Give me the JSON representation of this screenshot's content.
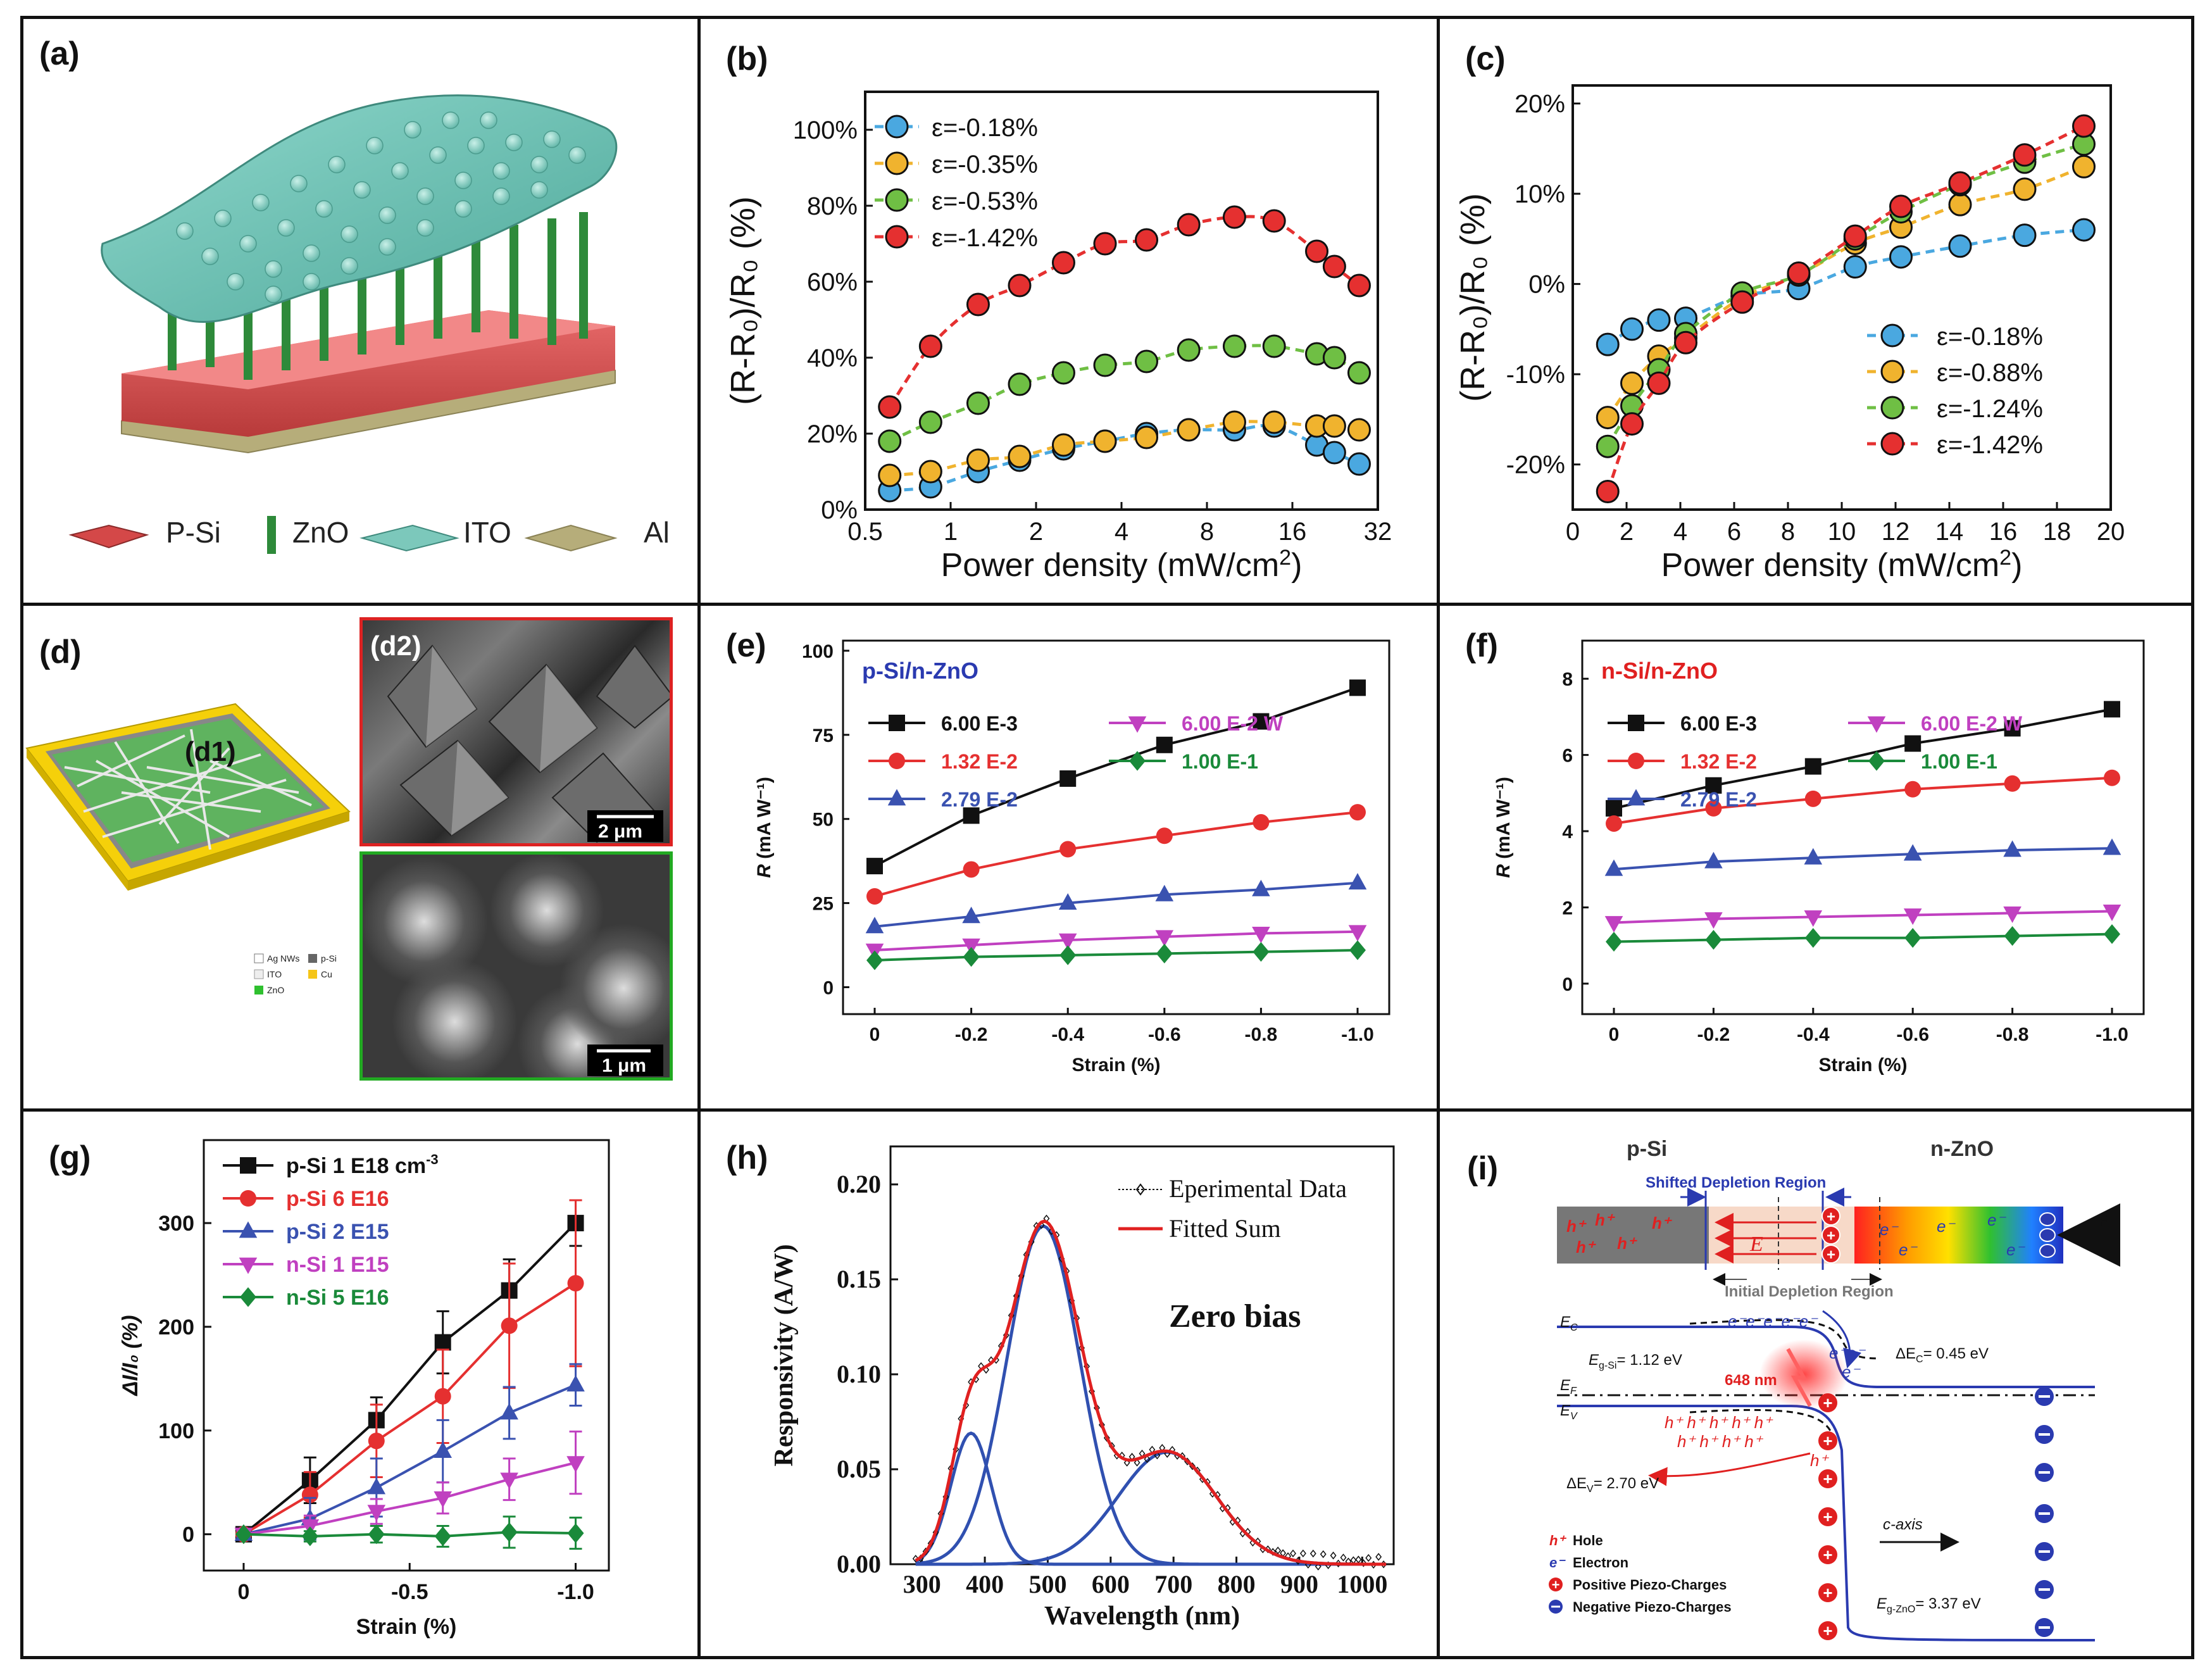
{
  "colors": {
    "blue": "#4aa8e0",
    "orange": "#f0b32e",
    "green": "#6fbf44",
    "red": "#e53030",
    "black": "#111111",
    "pink": "#c040c0",
    "dgreen": "#1a8a3a",
    "navy": "#3a52b0"
  },
  "panel_a": {
    "label": "(a)",
    "legend": [
      "P-Si",
      "ZnO",
      "ITO",
      "Al"
    ]
  },
  "panel_d": {
    "label": "(d)",
    "sub1": "(d1)",
    "sub2": "(d2)",
    "scale1": "2 μm",
    "scale2": "1 μm",
    "legend": [
      "Ag NWs",
      "p-Si",
      "ITO",
      "Cu",
      "ZnO"
    ]
  },
  "panel_i": {
    "label": "(i)",
    "psi": "p-Si",
    "nzno": "n-ZnO",
    "shifted": "Shifted Depletion Region",
    "initial": "Initial Depletion Region",
    "ec": "E",
    "ec_sub": "C",
    "ev": "E",
    "ev_sub": "V",
    "ef": "E",
    "ef_sub": "F",
    "eg_si": "E",
    "eg_si_sub": "g-Si",
    "eg_si_val": "= 1.12 eV",
    "dec": "ΔE",
    "dec_sub": "C",
    "dec_val": "= 0.45 eV",
    "dev": "ΔE",
    "dev_sub": "V",
    "dev_val": "= 2.70 eV",
    "eg_zno": "E",
    "eg_zno_sub": "g-ZnO",
    "eg_zno_val": "= 3.37 eV",
    "wavelength": "648 nm",
    "caxis": "c-axis",
    "force": "F",
    "efield": "E",
    "leg_hole": "Hole",
    "leg_electron": "Electron",
    "leg_pos": "Positive Piezo-Charges",
    "leg_neg": "Negative Piezo-Charges"
  },
  "chart_data": [
    {
      "id": "b",
      "type": "line",
      "label": "(b)",
      "title": "",
      "xlabel": "Power density (mW/cm",
      "xlabel_sup": "2",
      "xlabel_end": ")",
      "ylabel": "(R-R₀)/R₀ (%)",
      "xscale": "log2",
      "xlim": [
        0.5,
        32
      ],
      "xticks": [
        "0.5",
        "1",
        "2",
        "4",
        "8",
        "16",
        "32"
      ],
      "ylim": [
        0,
        110
      ],
      "yticks": [
        "0%",
        "20%",
        "40%",
        "60%",
        "80%",
        "100%"
      ],
      "x": [
        0.61,
        0.85,
        1.25,
        1.75,
        2.5,
        3.5,
        4.9,
        6.9,
        10.0,
        13.8,
        19.5,
        22.5,
        27.5
      ],
      "series": [
        {
          "name": "ε=-0.18%",
          "color": "blue",
          "values": [
            5,
            6,
            10,
            13,
            16,
            18,
            20,
            21,
            21,
            22,
            17,
            15,
            12
          ]
        },
        {
          "name": "ε=-0.35%",
          "color": "orange",
          "values": [
            9,
            10,
            13,
            14,
            17,
            18,
            19,
            21,
            23,
            23,
            22,
            22,
            21
          ]
        },
        {
          "name": "ε=-0.53%",
          "color": "green",
          "values": [
            18,
            23,
            28,
            33,
            36,
            38,
            39,
            42,
            43,
            43,
            41,
            40,
            36
          ]
        },
        {
          "name": "ε=-1.42%",
          "color": "red",
          "values": [
            27,
            43,
            54,
            59,
            65,
            70,
            71,
            75,
            77,
            76,
            68,
            64,
            59
          ]
        }
      ],
      "legend": "top-left"
    },
    {
      "id": "c",
      "type": "line",
      "label": "(c)",
      "xlabel": "Power density (mW/cm",
      "xlabel_sup": "2",
      "xlabel_end": ")",
      "ylabel": "(R-R₀)/R₀ (%)",
      "xlim": [
        0,
        20
      ],
      "xticks": [
        "0",
        "2",
        "4",
        "6",
        "8",
        "10",
        "12",
        "14",
        "16",
        "18",
        "20"
      ],
      "ylim": [
        -25,
        22
      ],
      "yticks": [
        "-20%",
        "-10%",
        "0%",
        "10%",
        "20%"
      ],
      "ytick_values": [
        -20,
        -10,
        0,
        10,
        20
      ],
      "x": [
        1.3,
        2.2,
        3.2,
        4.2,
        6.3,
        8.4,
        10.5,
        12.2,
        14.4,
        16.8,
        19
      ],
      "series": [
        {
          "name": "ε=-0.18%",
          "color": "blue",
          "values": [
            -6.7,
            -5,
            -4,
            -3.8,
            -1.3,
            -0.5,
            1.9,
            3,
            4.2,
            5.4,
            6
          ]
        },
        {
          "name": "ε=-0.88%",
          "color": "orange",
          "values": [
            -14.8,
            -11,
            -8,
            -6,
            -1.5,
            1,
            4.5,
            6.3,
            8.8,
            10.5,
            13
          ]
        },
        {
          "name": "ε=-1.24%",
          "color": "green",
          "values": [
            -18,
            -13.5,
            -9.5,
            -5.5,
            -1,
            1,
            5,
            8,
            11,
            13.5,
            15.5
          ]
        },
        {
          "name": "ε=-1.42%",
          "color": "red",
          "values": [
            -23,
            -15.5,
            -11,
            -6.5,
            -2,
            1.2,
            5.3,
            8.6,
            11.2,
            14.3,
            17.5
          ]
        }
      ],
      "legend": "bottom-right"
    },
    {
      "id": "e",
      "type": "line",
      "label": "(e)",
      "title": "p-Si/n-ZnO",
      "xlabel": "Strain (%)",
      "ylabel": "R",
      "ylabel_unit": "(mA W⁻¹)",
      "categories": [
        "0",
        "-0.2",
        "-0.4",
        "-0.6",
        "-0.8",
        "-1.0"
      ],
      "ylim": [
        -8,
        103
      ],
      "yticks": [
        "0",
        "25",
        "50",
        "75",
        "100"
      ],
      "ytick_values": [
        0,
        25,
        50,
        75,
        100
      ],
      "series": [
        {
          "name": "6.00 E-3",
          "color": "black",
          "marker": "square",
          "values": [
            36,
            51,
            62,
            72,
            79,
            89
          ]
        },
        {
          "name": "1.32 E-2",
          "color": "red",
          "marker": "circle",
          "values": [
            27,
            35,
            41,
            45,
            49,
            52
          ]
        },
        {
          "name": "2.79 E-2",
          "color": "navy",
          "marker": "triangle",
          "values": [
            18,
            21,
            25,
            27.5,
            29,
            31
          ]
        },
        {
          "name": "6.00 E-2 W",
          "color": "pink",
          "marker": "triangle-down",
          "values": [
            11,
            12.5,
            14,
            15,
            16,
            16.5
          ]
        },
        {
          "name": "1.00 E-1",
          "color": "dgreen",
          "marker": "diamond",
          "values": [
            8,
            9,
            9.5,
            10,
            10.5,
            11
          ]
        }
      ]
    },
    {
      "id": "f",
      "type": "line",
      "label": "(f)",
      "title": "n-Si/n-ZnO",
      "xlabel": "Strain (%)",
      "ylabel": "R",
      "ylabel_unit": "(mA W⁻¹)",
      "categories": [
        "0",
        "-0.2",
        "-0.4",
        "-0.6",
        "-0.8",
        "-1.0"
      ],
      "ylim": [
        -0.8,
        9
      ],
      "yticks": [
        "0",
        "2",
        "4",
        "6",
        "8"
      ],
      "ytick_values": [
        0,
        2,
        4,
        6,
        8
      ],
      "series": [
        {
          "name": "6.00 E-3",
          "color": "black",
          "marker": "square",
          "values": [
            4.6,
            5.2,
            5.7,
            6.3,
            6.7,
            7.2
          ]
        },
        {
          "name": "1.32 E-2",
          "color": "red",
          "marker": "circle",
          "values": [
            4.2,
            4.6,
            4.85,
            5.1,
            5.25,
            5.4
          ]
        },
        {
          "name": "2.79 E-2",
          "color": "navy",
          "marker": "triangle",
          "values": [
            3.0,
            3.2,
            3.3,
            3.4,
            3.5,
            3.55
          ]
        },
        {
          "name": "6.00 E-2 W",
          "color": "pink",
          "marker": "triangle-down",
          "values": [
            1.6,
            1.7,
            1.75,
            1.8,
            1.85,
            1.9
          ]
        },
        {
          "name": "1.00 E-1",
          "color": "dgreen",
          "marker": "diamond",
          "values": [
            1.1,
            1.15,
            1.2,
            1.2,
            1.25,
            1.3
          ]
        }
      ]
    },
    {
      "id": "g",
      "type": "line",
      "label": "(g)",
      "xlabel": "Strain (%)",
      "ylabel": "ΔI/I₀ (%)",
      "x": [
        0,
        -0.2,
        -0.4,
        -0.6,
        -0.8,
        -1.0
      ],
      "xlim": [
        0.12,
        -1.1
      ],
      "xticks": [
        "0",
        "-0.5",
        "-1.0"
      ],
      "xtick_values": [
        0,
        -0.5,
        -1.0
      ],
      "ylim": [
        -35,
        380
      ],
      "yticks": [
        "0",
        "100",
        "200",
        "300"
      ],
      "ytick_values": [
        0,
        100,
        200,
        300
      ],
      "series": [
        {
          "name": "p-Si 1 E18 cm",
          "name_sup": "-3",
          "color": "black",
          "marker": "square",
          "values": [
            0,
            52,
            110,
            185,
            235,
            300
          ],
          "err": [
            0,
            22,
            22,
            30,
            30,
            22
          ]
        },
        {
          "name": "p-Si 6 E16",
          "color": "red",
          "marker": "circle",
          "values": [
            0,
            38,
            90,
            133,
            201,
            242
          ],
          "err": [
            0,
            22,
            35,
            45,
            60,
            80
          ]
        },
        {
          "name": "p-Si 2 E15",
          "color": "navy",
          "marker": "triangle",
          "values": [
            0,
            15,
            45,
            80,
            117,
            144
          ],
          "err": [
            0,
            20,
            28,
            30,
            25,
            20
          ]
        },
        {
          "name": "n-Si 1 E15",
          "color": "pink",
          "marker": "triangle-down",
          "values": [
            0,
            8,
            22,
            35,
            53,
            69
          ],
          "err": [
            0,
            10,
            12,
            15,
            20,
            30
          ]
        },
        {
          "name": "n-Si 5 E16",
          "color": "dgreen",
          "marker": "diamond",
          "values": [
            0,
            -2,
            0,
            -2,
            2,
            1
          ],
          "err": [
            0,
            5,
            8,
            10,
            15,
            15
          ]
        }
      ],
      "legend": "top-left"
    },
    {
      "id": "h",
      "type": "line",
      "label": "(h)",
      "xlabel": "Wavelength (nm)",
      "ylabel": "Responsivity (A/W)",
      "annotation": "Zero bias",
      "xlim": [
        250,
        1050
      ],
      "xticks": [
        "300",
        "400",
        "500",
        "600",
        "700",
        "800",
        "900",
        "1000"
      ],
      "xtick_values": [
        300,
        400,
        500,
        600,
        700,
        800,
        900,
        1000
      ],
      "ylim": [
        0,
        0.22
      ],
      "yticks": [
        "0.00",
        "0.05",
        "0.10",
        "0.15",
        "0.20"
      ],
      "ytick_values": [
        0,
        0.05,
        0.1,
        0.15,
        0.2
      ],
      "legend_items": [
        "Eperimental Data",
        "Fitted Sum"
      ],
      "gaussians": [
        {
          "center": 378,
          "amp": 0.069,
          "sigma": 32
        },
        {
          "center": 493,
          "amp": 0.178,
          "sigma": 58
        },
        {
          "center": 690,
          "amp": 0.059,
          "sigma": 78
        }
      ]
    }
  ]
}
